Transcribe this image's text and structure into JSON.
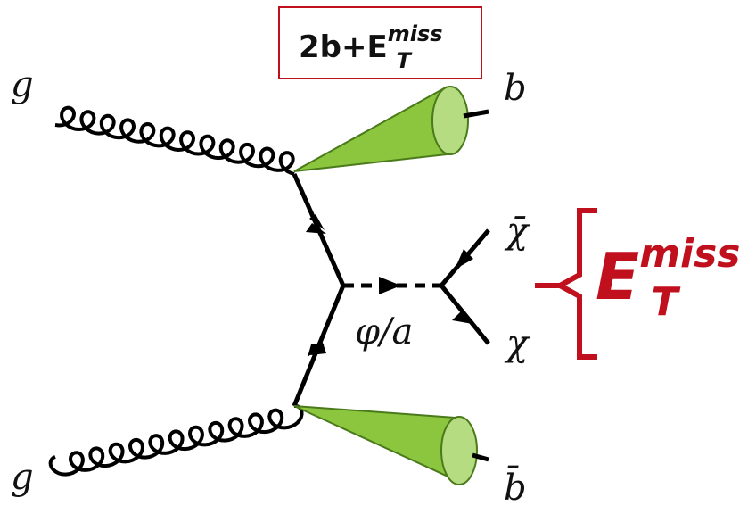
{
  "box": {
    "main": "2b+E",
    "sup": "miss",
    "sub": "T"
  },
  "particles": {
    "gluon_top": "g",
    "gluon_bottom": "g",
    "b": "b",
    "bbar": "b̄",
    "chibar": "χ̄",
    "chi": "χ",
    "mediator": "φ/a"
  },
  "missing": {
    "main": "E",
    "sup": "miss",
    "sub": "T"
  }
}
